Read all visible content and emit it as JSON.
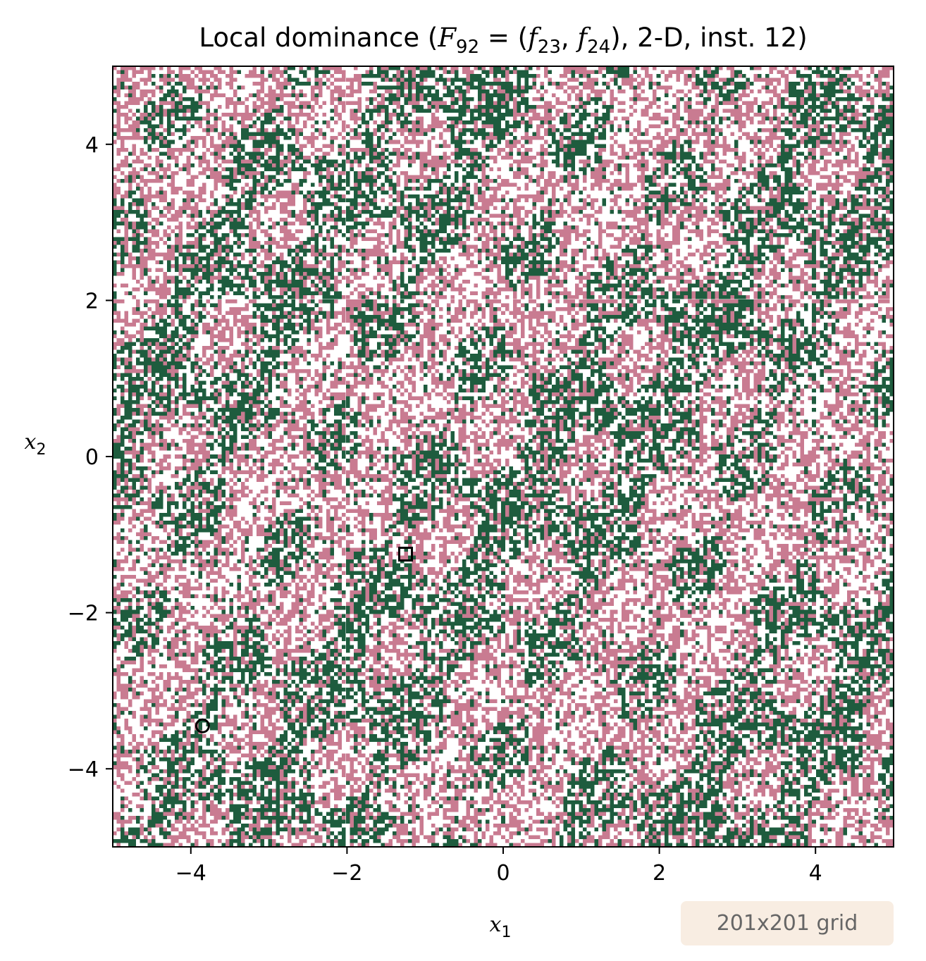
{
  "chart_data": {
    "type": "heatmap",
    "title": "Local dominance (F₉₂ = (f₂₃, f₂₄), 2-D, inst. 12)",
    "title_parts": {
      "prefix": "Local dominance (",
      "F": "F",
      "F_sub": "92",
      "eq": " = (",
      "f1": "f",
      "f1_sub": "23",
      "comma": ", ",
      "f2": "f",
      "f2_sub": "24",
      "suffix": "), 2-D, inst. 12)"
    },
    "xlabel": {
      "base": "x",
      "sub": "1"
    },
    "ylabel": {
      "base": "x",
      "sub": "2"
    },
    "xlim": [
      -5,
      5
    ],
    "ylim": [
      -5,
      5
    ],
    "xticks": [
      -4,
      -2,
      0,
      2,
      4
    ],
    "yticks": [
      -4,
      -2,
      0,
      2,
      4
    ],
    "xtick_labels": [
      "−4",
      "−2",
      "0",
      "2",
      "4"
    ],
    "ytick_labels": [
      "−4",
      "−2",
      "0",
      "2",
      "4"
    ],
    "grid_resolution": [
      201,
      201
    ],
    "category_colors": {
      "dominated": "#ffffff",
      "pink": "#c97b91",
      "green": "#1e5c3e"
    },
    "markers": [
      {
        "shape": "square",
        "x": -1.25,
        "y": -1.25
      },
      {
        "shape": "circle",
        "x": -3.85,
        "y": -3.45
      }
    ],
    "annotation": "201x201 grid",
    "grid": false
  }
}
